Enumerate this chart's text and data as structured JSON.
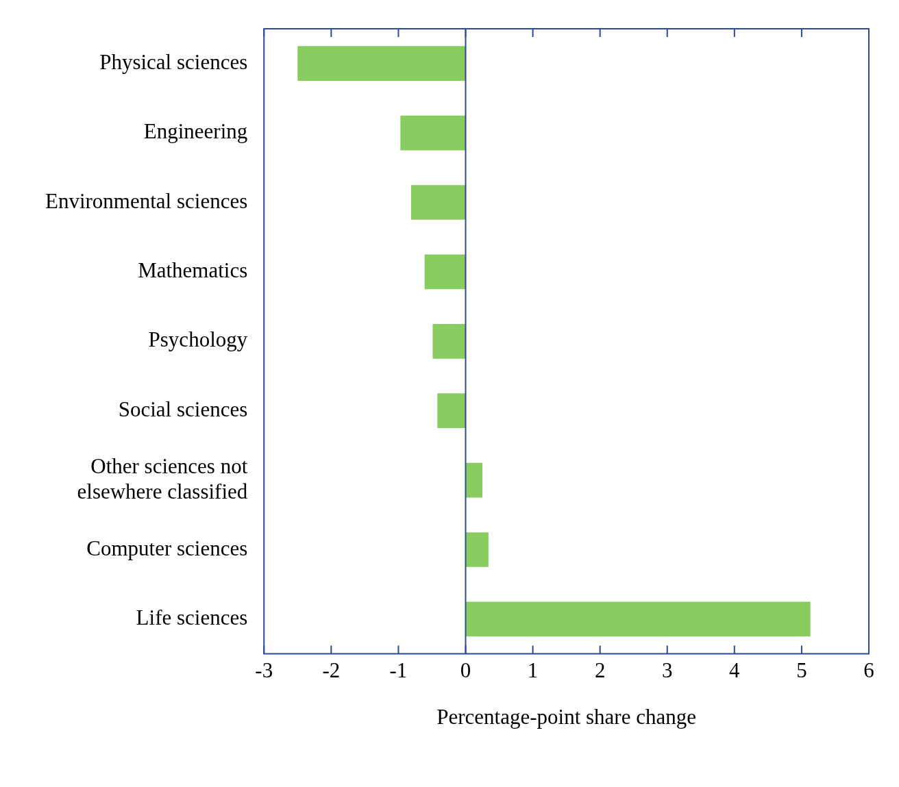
{
  "chart_data": {
    "type": "bar",
    "orientation": "horizontal",
    "xlabel": "Percentage-point share change",
    "categories": [
      "Physical sciences",
      "Engineering",
      "Environmental sciences",
      "Mathematics",
      "Psychology",
      "Social sciences",
      "Other sciences not elsewhere classified",
      "Computer sciences",
      "Life sciences"
    ],
    "values": [
      -2.5,
      -0.97,
      -0.81,
      -0.61,
      -0.49,
      -0.42,
      0.25,
      0.34,
      5.13
    ],
    "color": "#88cc5f",
    "xlim": [
      -3,
      6
    ],
    "xticks": [
      -3,
      -2,
      -1,
      0,
      1,
      2,
      3,
      4,
      5,
      6
    ],
    "grid": false,
    "legend": false,
    "ref_lines": [
      {
        "axis": "x",
        "value": 0,
        "color": "#2a4a9a"
      }
    ]
  }
}
